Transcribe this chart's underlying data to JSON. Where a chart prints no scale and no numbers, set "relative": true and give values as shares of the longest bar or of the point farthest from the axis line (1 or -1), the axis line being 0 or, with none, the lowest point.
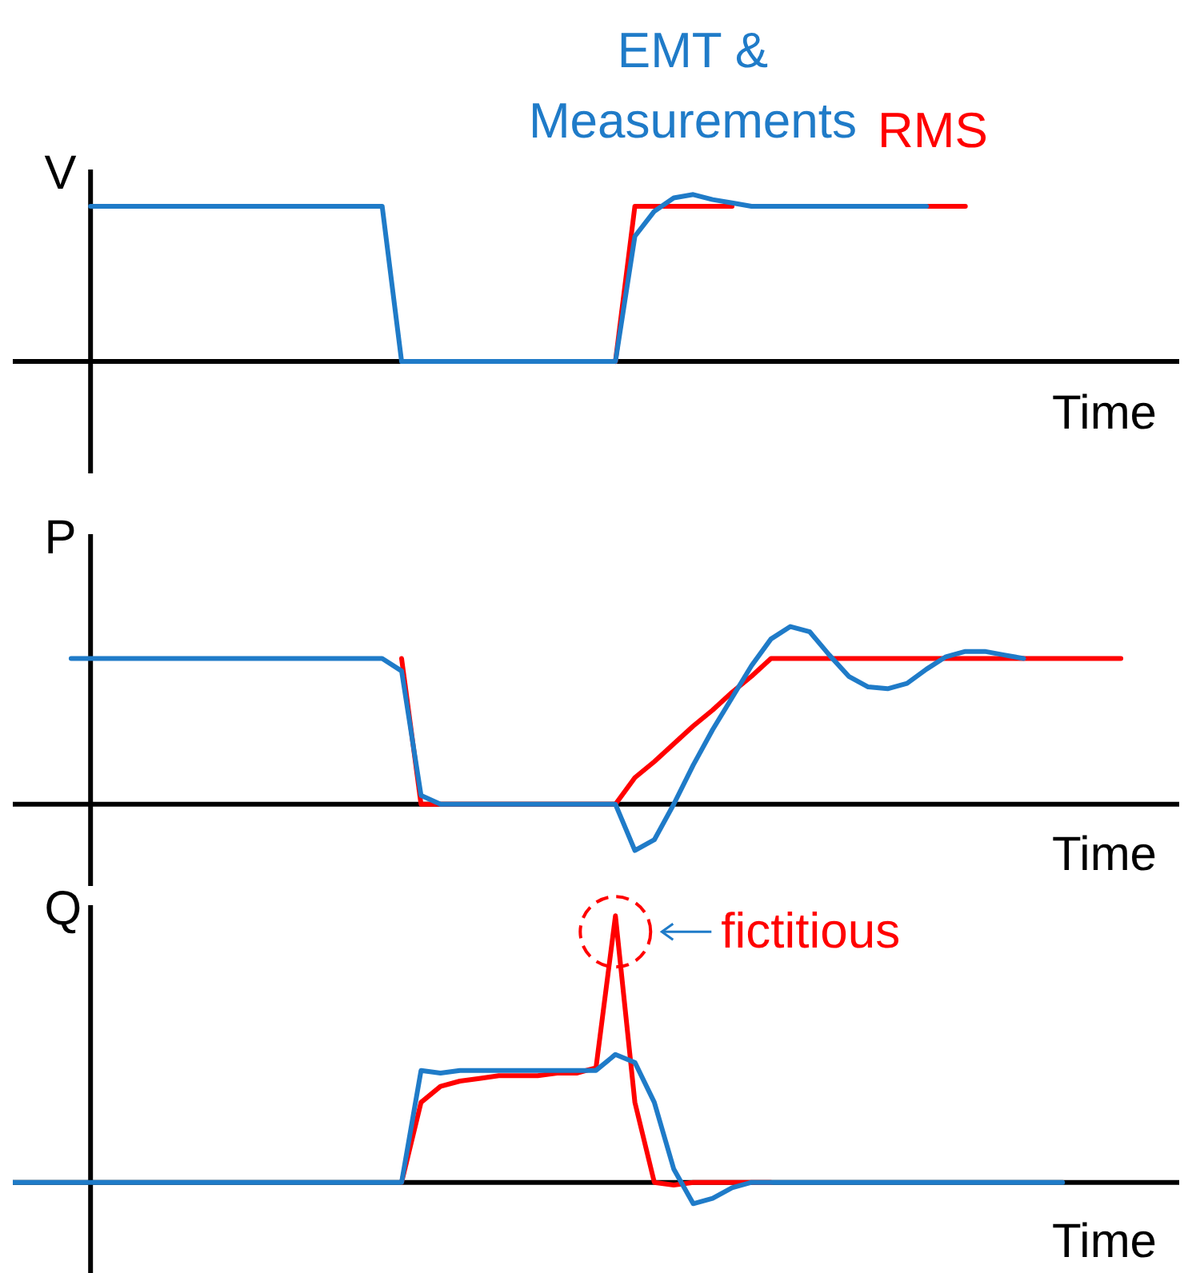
{
  "chart_data": [
    {
      "type": "line",
      "relative": true,
      "ylabel": "V",
      "xlabel": "Time",
      "legend": "top",
      "categories": [
        null,
        null,
        null,
        null,
        null,
        null,
        null,
        null,
        null,
        null,
        null,
        null,
        null,
        null,
        null,
        null,
        null,
        null,
        null,
        null,
        null,
        null,
        null,
        null,
        null,
        null,
        null,
        null,
        null,
        null,
        null,
        null,
        null,
        null,
        null,
        null,
        null,
        null,
        null,
        null,
        null,
        null,
        null,
        null,
        null,
        null,
        null,
        null,
        null,
        null,
        null,
        null,
        null,
        null,
        null,
        null,
        null,
        null,
        null,
        null,
        null
      ],
      "series": [
        {
          "name": "EMT & Measurements",
          "color": "#1f7bc8",
          "values": [
            null,
            null,
            null,
            null,
            0.93,
            0.93,
            0.93,
            0.93,
            0.93,
            0.93,
            0.93,
            0.93,
            0.93,
            0.93,
            0.93,
            0.93,
            0.93,
            0.93,
            0.93,
            0.93,
            0,
            0,
            0,
            0,
            0,
            0,
            0,
            0,
            0,
            0,
            0,
            0,
            0.75,
            0.9,
            0.98,
            1.0,
            0.97,
            0.95,
            0.93,
            0.93,
            0.93,
            0.93,
            0.93,
            0.93,
            0.93,
            0.93,
            0.93,
            0.93,
            null,
            null,
            null,
            null,
            null,
            null,
            null,
            null,
            null,
            null,
            null,
            null,
            null
          ]
        },
        {
          "name": "RMS",
          "color": "#ff0000",
          "values": [
            null,
            null,
            null,
            null,
            null,
            null,
            null,
            null,
            null,
            null,
            null,
            null,
            null,
            null,
            null,
            null,
            null,
            null,
            null,
            null,
            null,
            null,
            null,
            null,
            null,
            null,
            null,
            null,
            null,
            null,
            null,
            0,
            0.93,
            0.93,
            0.93,
            0.93,
            0.93,
            0.93,
            null,
            null,
            null,
            null,
            null,
            null,
            null,
            null,
            null,
            0.93,
            0.93,
            0.93,
            null,
            null,
            null,
            null,
            null,
            null,
            null,
            null,
            null,
            null,
            null
          ]
        }
      ]
    },
    {
      "type": "line",
      "relative": true,
      "ylabel": "P",
      "xlabel": "Time",
      "categories": [
        null,
        null,
        null,
        null,
        null,
        null,
        null,
        null,
        null,
        null,
        null,
        null,
        null,
        null,
        null,
        null,
        null,
        null,
        null,
        null,
        null,
        null,
        null,
        null,
        null,
        null,
        null,
        null,
        null,
        null,
        null,
        null,
        null,
        null,
        null,
        null,
        null,
        null,
        null,
        null,
        null,
        null,
        null,
        null,
        null,
        null,
        null,
        null,
        null,
        null,
        null,
        null,
        null,
        null,
        null,
        null,
        null,
        null,
        null,
        null,
        null
      ],
      "series": [
        {
          "color": "#1f7bc8",
          "values": [
            null,
            null,
            null,
            0.82,
            0.82,
            0.82,
            0.82,
            0.82,
            0.82,
            0.82,
            0.82,
            0.82,
            0.82,
            0.82,
            0.82,
            0.82,
            0.82,
            0.82,
            0.82,
            0.82,
            0.75,
            0.05,
            0,
            0,
            0,
            0,
            0,
            0,
            0,
            0,
            0,
            0,
            -0.26,
            -0.2,
            0.0,
            0.22,
            0.42,
            0.6,
            0.78,
            0.93,
            1.0,
            0.97,
            0.84,
            0.72,
            0.66,
            0.65,
            0.68,
            0.76,
            0.83,
            0.86,
            0.86,
            0.84,
            0.82,
            null,
            null,
            null,
            null,
            null,
            null,
            null,
            null
          ]
        },
        {
          "color": "#ff0000",
          "values": [
            null,
            null,
            null,
            null,
            null,
            null,
            null,
            null,
            null,
            null,
            null,
            null,
            null,
            null,
            null,
            null,
            null,
            null,
            null,
            null,
            0.82,
            0,
            0,
            0,
            0,
            0,
            0,
            0,
            0,
            0,
            0,
            0,
            0.15,
            0.24,
            0.34,
            0.44,
            0.53,
            0.63,
            0.72,
            0.82,
            0.82,
            0.82,
            0.82,
            0.82,
            0.82,
            0.82,
            0.82,
            0.82,
            0.82,
            0.82,
            0.82,
            0.82,
            0.82,
            0.82,
            0.82,
            0.82,
            0.82,
            0.82,
            null,
            null,
            null
          ]
        }
      ]
    },
    {
      "type": "line",
      "relative": true,
      "ylabel": "Q",
      "xlabel": "Time",
      "annotations": [
        "fictitious"
      ],
      "categories": [
        null,
        null,
        null,
        null,
        null,
        null,
        null,
        null,
        null,
        null,
        null,
        null,
        null,
        null,
        null,
        null,
        null,
        null,
        null,
        null,
        null,
        null,
        null,
        null,
        null,
        null,
        null,
        null,
        null,
        null,
        null,
        null,
        null,
        null,
        null,
        null,
        null,
        null,
        null,
        null,
        null,
        null,
        null,
        null,
        null,
        null,
        null,
        null,
        null,
        null,
        null,
        null,
        null,
        null,
        null,
        null,
        null,
        null,
        null,
        null,
        null
      ],
      "series": [
        {
          "color": "#1f7bc8",
          "values": [
            0,
            0,
            0,
            0,
            0,
            0,
            0,
            0,
            0,
            0,
            0,
            0,
            0,
            0,
            0,
            0,
            0,
            0,
            0,
            0,
            0,
            0.42,
            0.41,
            0.42,
            0.42,
            0.42,
            0.42,
            0.42,
            0.42,
            0.42,
            0.42,
            0.48,
            0.45,
            0.3,
            0.05,
            -0.08,
            -0.06,
            -0.02,
            0,
            0,
            0,
            0,
            0,
            0,
            0,
            0,
            0,
            0,
            0,
            0,
            0,
            0,
            0,
            0,
            0,
            null,
            null,
            null,
            null,
            null,
            null
          ]
        },
        {
          "color": "#ff0000",
          "values": [
            null,
            null,
            null,
            null,
            null,
            null,
            null,
            null,
            null,
            null,
            null,
            null,
            null,
            null,
            null,
            null,
            null,
            null,
            null,
            null,
            0,
            0.3,
            0.36,
            0.38,
            0.39,
            0.4,
            0.4,
            0.4,
            0.41,
            0.41,
            0.43,
            1.0,
            0.3,
            0,
            -0.01,
            0,
            0,
            0,
            0,
            0,
            null,
            null,
            null,
            null,
            null,
            null,
            null,
            null,
            null,
            null,
            null,
            null,
            null,
            null,
            null,
            null,
            null,
            null,
            null,
            null,
            null
          ]
        }
      ]
    }
  ]
}
